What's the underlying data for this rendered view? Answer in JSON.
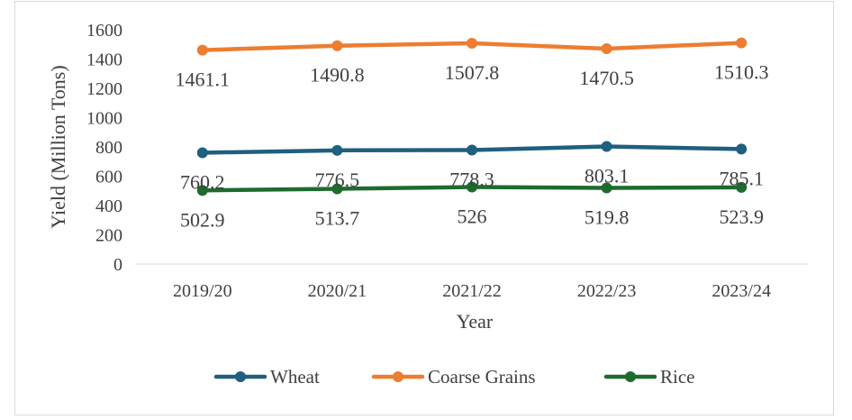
{
  "chart_data": {
    "type": "line",
    "title": "",
    "xlabel": "Year",
    "ylabel": "Yield (Million Tons)",
    "categories": [
      "2019/20",
      "2020/21",
      "2021/22",
      "2022/23",
      "2023/24"
    ],
    "ylim": [
      0,
      1600
    ],
    "yticks": [
      "0",
      "200",
      "400",
      "600",
      "800",
      "1000",
      "1200",
      "1400",
      "1600"
    ],
    "grid": false,
    "legend_position": "bottom",
    "series": [
      {
        "name": "Wheat",
        "color": "#1f5f7f",
        "values": [
          760.2,
          776.5,
          778.3,
          803.1,
          785.1
        ],
        "labels": [
          "760.2",
          "776.5",
          "778.3",
          "803.1",
          "785.1"
        ]
      },
      {
        "name": "Coarse Grains",
        "color": "#ed7d31",
        "values": [
          1461.1,
          1490.8,
          1507.8,
          1470.5,
          1510.3
        ],
        "labels": [
          "1461.1",
          "1490.8",
          "1507.8",
          "1470.5",
          "1510.3"
        ]
      },
      {
        "name": "Rice",
        "color": "#1e6b2e",
        "values": [
          502.9,
          513.7,
          526,
          519.8,
          523.9
        ],
        "labels": [
          "502.9",
          "513.7",
          "526",
          "519.8",
          "523.9"
        ]
      }
    ]
  }
}
